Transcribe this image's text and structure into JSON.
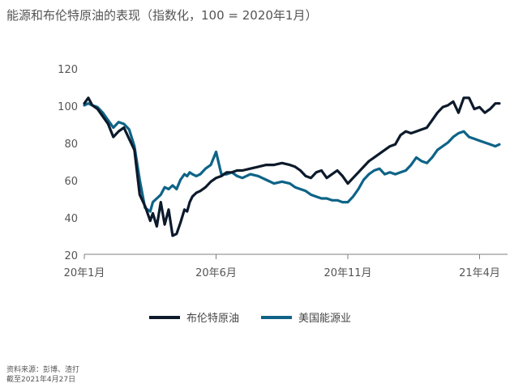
{
  "header": {
    "title": "能源和布伦特原油的表现（指数化，100 = 2020年1月）"
  },
  "footer": {
    "source": "资料来源：彭博、渣打",
    "as_of": "截至2021年4月27日"
  },
  "colors": {
    "brent": "#0c1a2b",
    "energy": "#0e6387",
    "axis": "#7f7f7f"
  },
  "chart_data": {
    "type": "line",
    "title": "能源和布伦特原油的表现（指数化，100 = 2020年1月）",
    "ylim": [
      20,
      120
    ],
    "yticks": [
      20,
      40,
      60,
      80,
      100,
      120
    ],
    "xlim": [
      0,
      16
    ],
    "xticks": [
      {
        "x": 0,
        "label": "20年1月"
      },
      {
        "x": 5,
        "label": "20年6月"
      },
      {
        "x": 10,
        "label": "20年11月"
      },
      {
        "x": 15,
        "label": "21年4月"
      }
    ],
    "grid": false,
    "legend_position": "bottom",
    "series": [
      {
        "name": "布伦特原油",
        "color": "#0c1a2b",
        "x": [
          0,
          0.15,
          0.3,
          0.5,
          0.7,
          0.9,
          1.1,
          1.3,
          1.5,
          1.7,
          1.9,
          2.1,
          2.3,
          2.5,
          2.6,
          2.75,
          2.9,
          3.05,
          3.2,
          3.35,
          3.5,
          3.65,
          3.8,
          3.9,
          4.0,
          4.1,
          4.25,
          4.4,
          4.6,
          4.8,
          5.0,
          5.2,
          5.4,
          5.6,
          5.8,
          6.0,
          6.3,
          6.6,
          6.9,
          7.2,
          7.5,
          7.8,
          8.0,
          8.2,
          8.4,
          8.6,
          8.8,
          9.0,
          9.2,
          9.4,
          9.6,
          9.8,
          10.0,
          10.2,
          10.4,
          10.6,
          10.8,
          11.0,
          11.2,
          11.4,
          11.6,
          11.8,
          12.0,
          12.2,
          12.4,
          12.6,
          12.8,
          13.0,
          13.2,
          13.4,
          13.6,
          13.8,
          14.0,
          14.2,
          14.4,
          14.6,
          14.8,
          15.0,
          15.2,
          15.4,
          15.6,
          15.75
        ],
        "values": [
          101,
          104,
          100,
          98,
          94,
          90,
          83,
          86,
          88,
          82,
          76,
          52,
          46,
          38,
          42,
          35,
          48,
          36,
          44,
          30,
          31,
          37,
          44,
          43,
          48,
          51,
          53,
          54,
          56,
          59,
          61,
          62,
          64,
          64,
          65,
          65,
          66,
          67,
          68,
          68,
          69,
          68,
          67,
          65,
          62,
          61,
          64,
          65,
          61,
          63,
          65,
          62,
          58,
          61,
          64,
          67,
          70,
          72,
          74,
          76,
          78,
          79,
          84,
          86,
          85,
          86,
          87,
          88,
          92,
          96,
          99,
          100,
          102,
          96,
          104,
          104,
          98,
          99,
          96,
          98,
          101,
          101
        ]
      },
      {
        "name": "美国能源业",
        "color": "#0e6387",
        "x": [
          0,
          0.15,
          0.3,
          0.5,
          0.7,
          0.9,
          1.1,
          1.3,
          1.5,
          1.7,
          1.9,
          2.1,
          2.3,
          2.5,
          2.6,
          2.75,
          2.9,
          3.05,
          3.2,
          3.35,
          3.5,
          3.65,
          3.8,
          3.9,
          4.0,
          4.1,
          4.25,
          4.4,
          4.6,
          4.8,
          5.0,
          5.2,
          5.4,
          5.6,
          5.8,
          6.0,
          6.3,
          6.6,
          6.9,
          7.2,
          7.5,
          7.8,
          8.0,
          8.2,
          8.4,
          8.6,
          8.8,
          9.0,
          9.2,
          9.4,
          9.6,
          9.8,
          10.0,
          10.2,
          10.4,
          10.6,
          10.8,
          11.0,
          11.2,
          11.4,
          11.6,
          11.8,
          12.0,
          12.2,
          12.4,
          12.6,
          12.8,
          13.0,
          13.2,
          13.4,
          13.6,
          13.8,
          14.0,
          14.2,
          14.4,
          14.6,
          14.8,
          15.0,
          15.2,
          15.4,
          15.6,
          15.75
        ],
        "values": [
          100,
          101,
          100,
          99,
          96,
          92,
          88,
          91,
          90,
          87,
          78,
          60,
          45,
          43,
          48,
          50,
          52,
          56,
          55,
          57,
          55,
          60,
          63,
          62,
          64,
          63,
          62,
          63,
          66,
          68,
          75,
          63,
          63,
          64,
          62,
          61,
          63,
          62,
          60,
          58,
          59,
          58,
          56,
          55,
          54,
          52,
          51,
          50,
          50,
          49,
          49,
          48,
          48,
          51,
          55,
          60,
          63,
          65,
          66,
          63,
          64,
          63,
          64,
          65,
          68,
          72,
          70,
          69,
          72,
          76,
          78,
          80,
          83,
          85,
          86,
          83,
          82,
          81,
          80,
          79,
          78,
          79
        ]
      }
    ]
  }
}
